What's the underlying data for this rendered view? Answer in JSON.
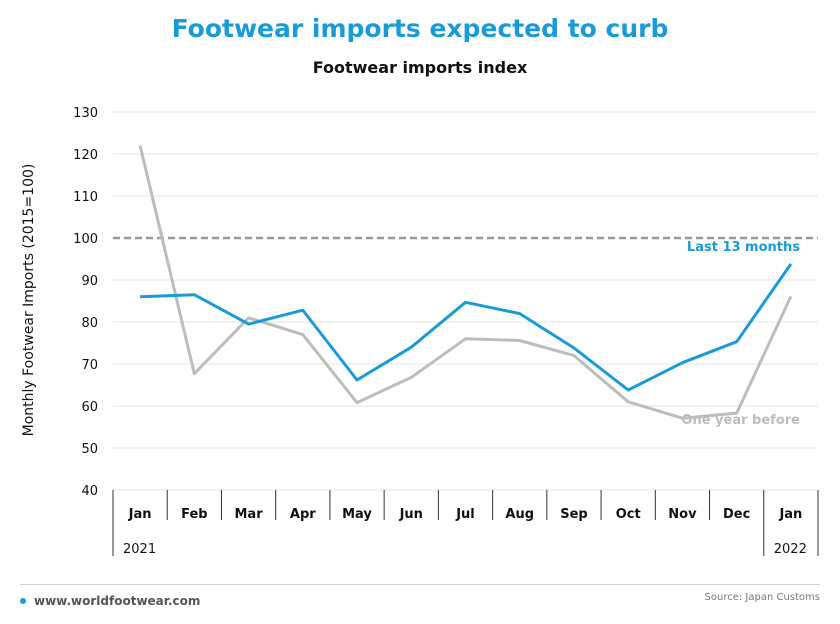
{
  "header": {
    "title": "Footwear imports expected to curb",
    "subtitle": "Footwear imports index"
  },
  "footer": {
    "site": "www.worldfootwear.com",
    "source": "Source: Japan Customs"
  },
  "colors": {
    "title": "#1a9bd7",
    "series_current": "#1a9bd7",
    "series_prior": "#bdbdbd",
    "reference": "#999999"
  },
  "chart_data": {
    "type": "line",
    "ylabel": "Monthly Footwear Imports (2015=100)",
    "ylim": [
      40,
      130
    ],
    "yticks": [
      40,
      50,
      60,
      70,
      80,
      90,
      100,
      110,
      120,
      130
    ],
    "categories": [
      "Jan",
      "Feb",
      "Mar",
      "Apr",
      "May",
      "Jun",
      "Jul",
      "Aug",
      "Sep",
      "Oct",
      "Nov",
      "Dec",
      "Jan"
    ],
    "year_labels": [
      {
        "label": "2021",
        "start_index": 0
      },
      {
        "label": "2022",
        "start_index": 12
      }
    ],
    "reference_line": 100,
    "grid": true,
    "series": [
      {
        "name": "Last 13 months",
        "values": [
          86,
          86.5,
          79.5,
          82.8,
          66.2,
          74,
          84.7,
          82,
          73.8,
          63.8,
          70.3,
          75.3,
          93.8
        ]
      },
      {
        "name": "One year before",
        "values": [
          122,
          67.7,
          81,
          77,
          60.8,
          66.8,
          76,
          75.6,
          72,
          61,
          57.1,
          58.3,
          86.1
        ]
      }
    ]
  }
}
